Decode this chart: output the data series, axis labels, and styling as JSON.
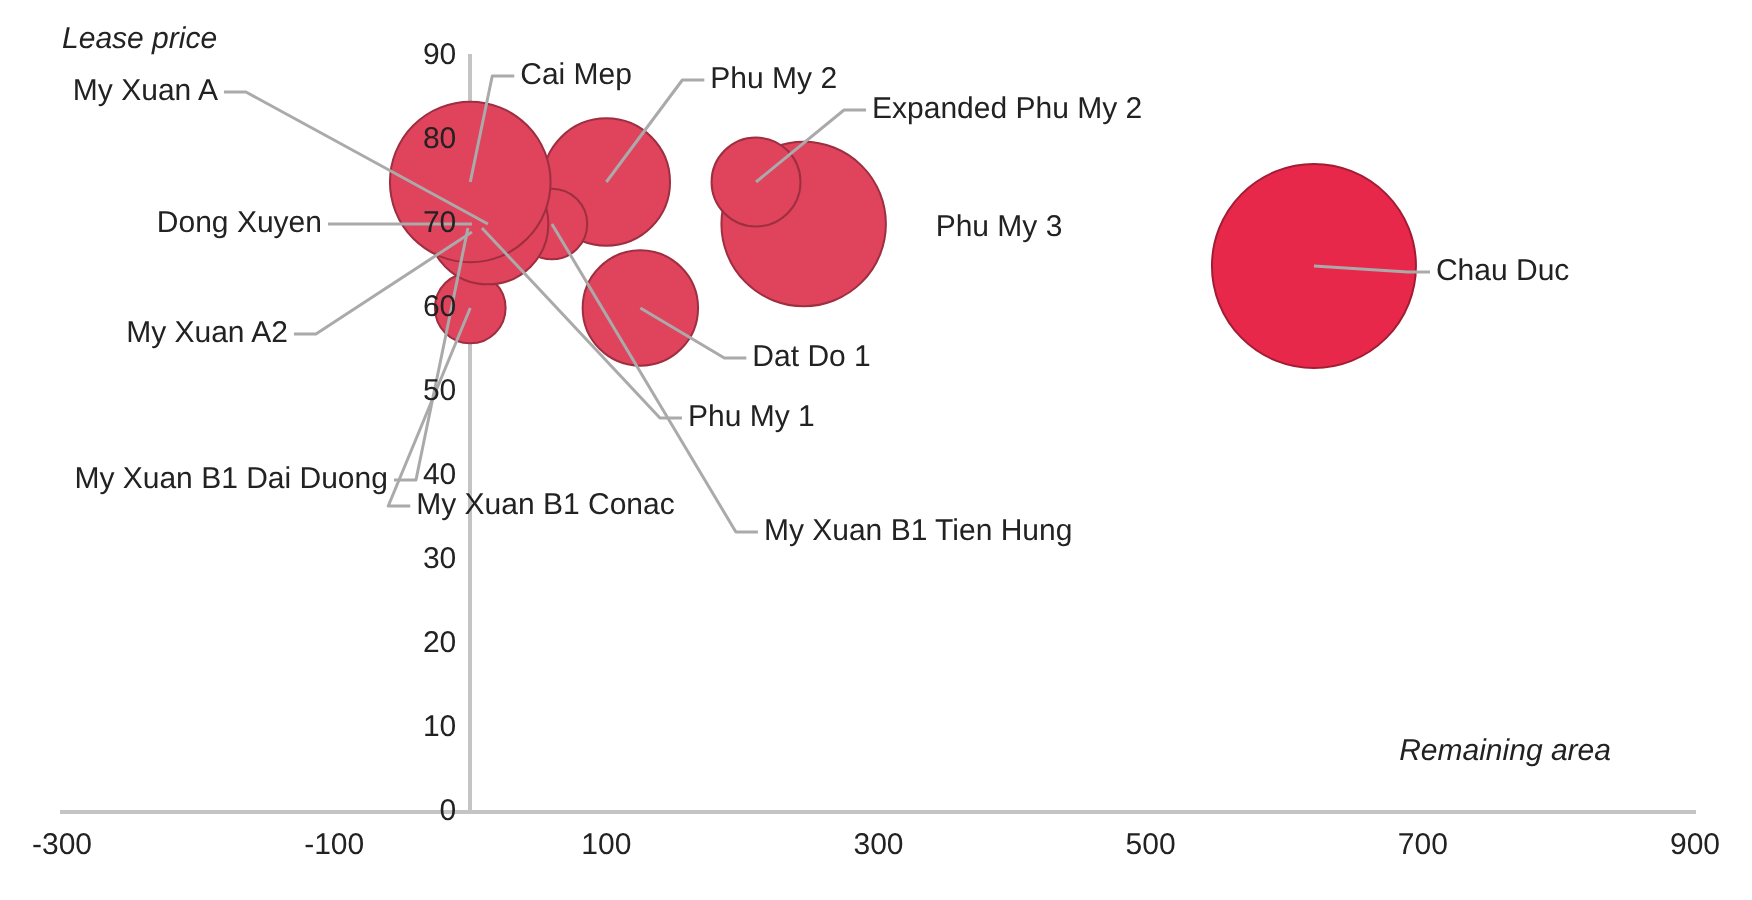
{
  "chart_data": {
    "type": "bubble",
    "xlabel": "Remaining area",
    "ylabel": "Lease price",
    "xlim": [
      -300,
      900
    ],
    "xticks": [
      -300,
      -100,
      100,
      300,
      500,
      700,
      900
    ],
    "ylim": [
      0,
      90
    ],
    "yticks": [
      0,
      10,
      20,
      30,
      40,
      50,
      60,
      70,
      80,
      90
    ],
    "grid": false,
    "legend": false,
    "series": [
      {
        "name": "Cai Mep",
        "color": "#e0435c",
        "x": [
          0
        ],
        "values": [
          75
        ],
        "sizes": [
          0.62
        ]
      },
      {
        "name": "My Xuan A",
        "color": "#e0435c",
        "x": [
          13
        ],
        "values": [
          70
        ],
        "sizes": [
          0.35
        ]
      },
      {
        "name": "Dong Xuyen",
        "values": [
          null
        ]
      },
      {
        "name": "My Xuan A2",
        "values": [
          null
        ]
      },
      {
        "name": "My Xuan B1 Dai Duong",
        "values": [
          null
        ]
      },
      {
        "name": "Phu My 1",
        "values": [
          null
        ]
      },
      {
        "name": "My Xuan B1 Tien Hung",
        "color": "#e0435c",
        "x": [
          60
        ],
        "values": [
          70
        ],
        "sizes": [
          0.12
        ]
      },
      {
        "name": "My Xuan B1 Conac",
        "color": "#e0435c",
        "x": [
          0
        ],
        "values": [
          60
        ],
        "sizes": [
          0.12
        ]
      },
      {
        "name": "Phu My 2",
        "color": "#e0435c",
        "x": [
          100
        ],
        "values": [
          75
        ],
        "sizes": [
          0.39
        ]
      },
      {
        "name": "Expanded Phu My 2",
        "color": "#e0435c",
        "x": [
          210
        ],
        "values": [
          75
        ],
        "sizes": [
          0.19
        ]
      },
      {
        "name": "Phu My 3",
        "color": "#e0435c",
        "x": [
          245
        ],
        "values": [
          70
        ],
        "sizes": [
          0.65
        ]
      },
      {
        "name": "Dat Do 1",
        "color": "#e0435c",
        "x": [
          125
        ],
        "values": [
          60
        ],
        "sizes": [
          0.32
        ]
      },
      {
        "name": "Chau Duc",
        "color": "#e8284a",
        "x": [
          620
        ],
        "values": [
          65
        ],
        "sizes": [
          1
        ]
      }
    ]
  }
}
